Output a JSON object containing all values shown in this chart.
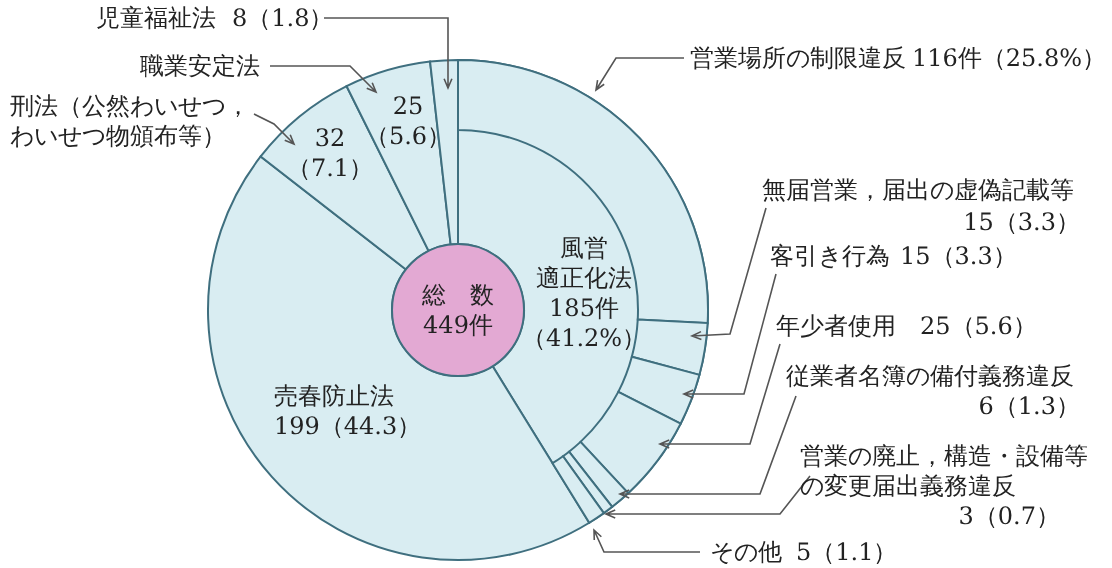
{
  "chart_data": [
    {
      "type": "donut",
      "categories": [
        "風営適正化法",
        "売春防止法",
        "刑法（公然わいせつ，わいせつ物頒布等）",
        "職業安定法",
        "児童福祉法"
      ],
      "values": [
        185,
        199,
        32,
        25,
        8
      ],
      "value_labels": [
        "185件（41.2%）",
        "199（44.3）",
        "32（7.1）",
        "25（5.6）",
        "8（1.8）"
      ],
      "colors": [
        "#d9edf2",
        "#d9edf2",
        "#d9edf2",
        "#d9edf2",
        "#d9edf2"
      ],
      "annotations": [
        "総　数\n449件"
      ]
    },
    {
      "type": "donut",
      "categories": [
        "営業場所の制限違反",
        "無届営業，届出の虚偽記載等",
        "客引き行為",
        "年少者使用",
        "従業者名簿の備付義務違反",
        "営業の廃止，構造・設備等の変更届出義務違反",
        "その他"
      ],
      "values": [
        116,
        15,
        15,
        25,
        6,
        3,
        5
      ],
      "value_labels": [
        "116件（25.8%）",
        "15（3.3）",
        "15（3.3）",
        "25（5.6）",
        "6（1.3）",
        "3（0.7）",
        "5（1.1）"
      ],
      "colors": [
        "#d9edf2",
        "#d9edf2",
        "#d9edf2",
        "#d9edf2",
        "#d9edf2",
        "#d9edf2",
        "#d9edf2"
      ]
    }
  ]
}
